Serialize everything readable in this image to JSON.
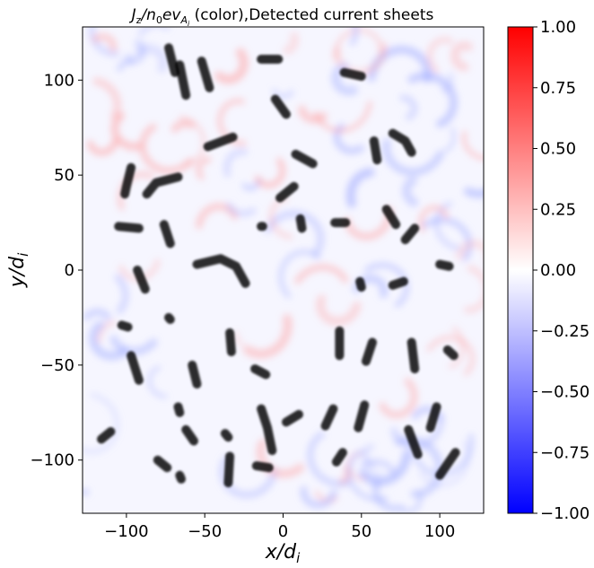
{
  "chart_data": {
    "type": "heatmap",
    "title": {
      "math": "J_z/n_0ev_{A_i}",
      "rest": " (color),Detected current sheets"
    },
    "xlabel": "x/d_i",
    "ylabel": "y/d_i",
    "xlim": [
      -128,
      128
    ],
    "ylim": [
      -128,
      128
    ],
    "x_ticks": [
      -100,
      -50,
      0,
      50,
      100
    ],
    "x_tick_labels": [
      "−100",
      "−50",
      "0",
      "50",
      "100"
    ],
    "y_ticks": [
      -100,
      -50,
      0,
      50,
      100
    ],
    "y_tick_labels": [
      "−100",
      "−50",
      "0",
      "50",
      "100"
    ],
    "colorbar": {
      "range": [
        -1.0,
        1.0
      ],
      "colormap": "bwr",
      "colors": {
        "low": "#0000ff",
        "mid": "#ffffff",
        "high": "#ff0000"
      },
      "ticks": [
        1.0,
        0.75,
        0.5,
        0.25,
        0.0,
        -0.25,
        -0.5,
        -0.75,
        -1.0
      ],
      "tick_labels": [
        "1.00",
        "0.75",
        "0.50",
        "0.25",
        "0.00",
        "−0.25",
        "−0.50",
        "−0.75",
        "−1.00"
      ]
    },
    "detected_sheet_color": "#000000",
    "detected_sheets": [
      {
        "path": [
          [
            -73,
            117
          ],
          [
            -69,
            104
          ]
        ]
      },
      {
        "path": [
          [
            -66,
            108
          ],
          [
            -62,
            92
          ]
        ]
      },
      {
        "path": [
          [
            -52,
            110
          ],
          [
            -47,
            96
          ]
        ]
      },
      {
        "path": [
          [
            -14,
            111
          ],
          [
            -3,
            111
          ]
        ]
      },
      {
        "path": [
          [
            -5,
            90
          ],
          [
            2,
            82
          ]
        ]
      },
      {
        "path": [
          [
            39,
            104
          ],
          [
            50,
            102
          ]
        ]
      },
      {
        "path": [
          [
            -48,
            65
          ],
          [
            -32,
            70
          ]
        ]
      },
      {
        "path": [
          [
            8,
            61
          ],
          [
            19,
            56
          ]
        ]
      },
      {
        "path": [
          [
            58,
            68
          ],
          [
            60,
            58
          ]
        ]
      },
      {
        "path": [
          [
            70,
            72
          ],
          [
            78,
            68
          ],
          [
            82,
            62
          ]
        ]
      },
      {
        "path": [
          [
            -97,
            54
          ],
          [
            -100,
            44
          ],
          [
            -101,
            40
          ]
        ]
      },
      {
        "path": [
          [
            -87,
            40
          ],
          [
            -81,
            46
          ],
          [
            -67,
            49
          ]
        ]
      },
      {
        "path": [
          [
            -2,
            38
          ],
          [
            7,
            44
          ]
        ]
      },
      {
        "path": [
          [
            -105,
            23
          ],
          [
            -92,
            22
          ]
        ]
      },
      {
        "path": [
          [
            -76,
            24
          ],
          [
            -72,
            14
          ]
        ]
      },
      {
        "path": [
          [
            -14,
            23
          ],
          [
            -13,
            23
          ]
        ]
      },
      {
        "path": [
          [
            11,
            27
          ],
          [
            12,
            22
          ]
        ]
      },
      {
        "path": [
          [
            33,
            25
          ],
          [
            40,
            25
          ]
        ]
      },
      {
        "path": [
          [
            66,
            32
          ],
          [
            72,
            24
          ]
        ]
      },
      {
        "path": [
          [
            78,
            16
          ],
          [
            84,
            22
          ]
        ]
      },
      {
        "path": [
          [
            -93,
            0
          ],
          [
            -88,
            -10
          ]
        ]
      },
      {
        "path": [
          [
            -55,
            3
          ],
          [
            -40,
            6
          ],
          [
            -30,
            2
          ],
          [
            -24,
            -7
          ]
        ]
      },
      {
        "path": [
          [
            49,
            -6
          ],
          [
            50,
            -9
          ]
        ]
      },
      {
        "path": [
          [
            70,
            -8
          ],
          [
            77,
            -6
          ]
        ]
      },
      {
        "path": [
          [
            100,
            3
          ],
          [
            106,
            2
          ]
        ]
      },
      {
        "path": [
          [
            -103,
            -29
          ],
          [
            -99,
            -30
          ]
        ]
      },
      {
        "path": [
          [
            -73,
            -25
          ],
          [
            -72,
            -26
          ]
        ]
      },
      {
        "path": [
          [
            36,
            -32
          ],
          [
            36,
            -45
          ]
        ]
      },
      {
        "path": [
          [
            57,
            -38
          ],
          [
            53,
            -48
          ]
        ]
      },
      {
        "path": [
          [
            -97,
            -45
          ],
          [
            -92,
            -58
          ]
        ]
      },
      {
        "path": [
          [
            -58,
            -50
          ],
          [
            -55,
            -60
          ]
        ]
      },
      {
        "path": [
          [
            -34,
            -33
          ],
          [
            -33,
            -43
          ]
        ]
      },
      {
        "path": [
          [
            -18,
            -52
          ],
          [
            -11,
            -55
          ]
        ]
      },
      {
        "path": [
          [
            82,
            -38
          ],
          [
            84,
            -52
          ]
        ]
      },
      {
        "path": [
          [
            105,
            -42
          ],
          [
            109,
            -45
          ]
        ]
      },
      {
        "path": [
          [
            -67,
            -72
          ],
          [
            -66,
            -75
          ]
        ]
      },
      {
        "path": [
          [
            -14,
            -73
          ],
          [
            -10,
            -83
          ],
          [
            -7,
            -95
          ]
        ]
      },
      {
        "path": [
          [
            2,
            -80
          ],
          [
            10,
            -76
          ]
        ]
      },
      {
        "path": [
          [
            32,
            -73
          ],
          [
            27,
            -82
          ]
        ]
      },
      {
        "path": [
          [
            52,
            -71
          ],
          [
            48,
            -83
          ]
        ]
      },
      {
        "path": [
          [
            98,
            -72
          ],
          [
            94,
            -83
          ]
        ]
      },
      {
        "path": [
          [
            -116,
            -89
          ],
          [
            -110,
            -85
          ]
        ]
      },
      {
        "path": [
          [
            -62,
            -84
          ],
          [
            -57,
            -90
          ]
        ]
      },
      {
        "path": [
          [
            -37,
            -86
          ],
          [
            -35,
            -88
          ]
        ]
      },
      {
        "path": [
          [
            -34,
            -98
          ],
          [
            -35,
            -112
          ]
        ]
      },
      {
        "path": [
          [
            -17,
            -103
          ],
          [
            -9,
            -104
          ]
        ]
      },
      {
        "path": [
          [
            -80,
            -100
          ],
          [
            -74,
            -104
          ]
        ]
      },
      {
        "path": [
          [
            34,
            -101
          ],
          [
            38,
            -96
          ]
        ]
      },
      {
        "path": [
          [
            80,
            -84
          ],
          [
            86,
            -97
          ]
        ]
      },
      {
        "path": [
          [
            100,
            -108
          ],
          [
            110,
            -96
          ]
        ]
      },
      {
        "path": [
          [
            -66,
            -108
          ],
          [
            -65,
            -110
          ]
        ]
      }
    ]
  }
}
